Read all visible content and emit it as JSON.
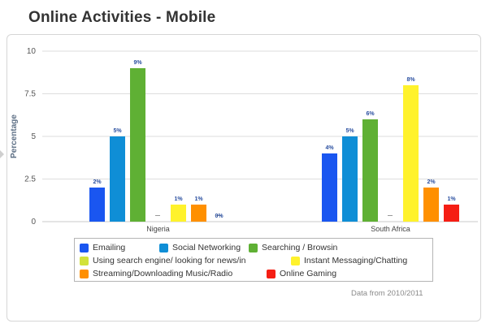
{
  "title": "Online Activities - Mobile",
  "source_note": "Data from 2010/2011",
  "chart_data": {
    "type": "bar",
    "title": "",
    "xlabel": "",
    "ylabel": "Percentage",
    "ylim": [
      0,
      10
    ],
    "yticks": [
      "0",
      "2.5",
      "5",
      "7.5",
      "10"
    ],
    "grid": true,
    "legend_position": "bottom",
    "categories": [
      "Nigeria",
      "South Africa"
    ],
    "series": [
      {
        "name": "Emailing",
        "color": "#1a56f0",
        "values": [
          2,
          4
        ],
        "labels": [
          "2%",
          "4%"
        ]
      },
      {
        "name": "Social Networking",
        "color": "#0f8ed6",
        "values": [
          5,
          5
        ],
        "labels": [
          "5%",
          "5%"
        ]
      },
      {
        "name": "Searching / Browsin",
        "color": "#5fb034",
        "values": [
          9,
          6
        ],
        "labels": [
          "9%",
          "6%"
        ]
      },
      {
        "name": "Using search engine/ looking for news/in",
        "color": "#d2e23a",
        "values": [
          0,
          0
        ],
        "labels": [
          "",
          ""
        ]
      },
      {
        "name": "Instant Messaging/Chatting",
        "color": "#fff22c",
        "values": [
          1,
          8
        ],
        "labels": [
          "1%",
          "8%"
        ]
      },
      {
        "name": "Streaming/Downloading Music/Radio",
        "color": "#ff9000",
        "values": [
          1,
          2
        ],
        "labels": [
          "1%",
          "2%"
        ]
      },
      {
        "name": "Online Gaming",
        "color": "#f51e14",
        "values": [
          0,
          1
        ],
        "labels": [
          "0%",
          "1%"
        ]
      }
    ]
  }
}
